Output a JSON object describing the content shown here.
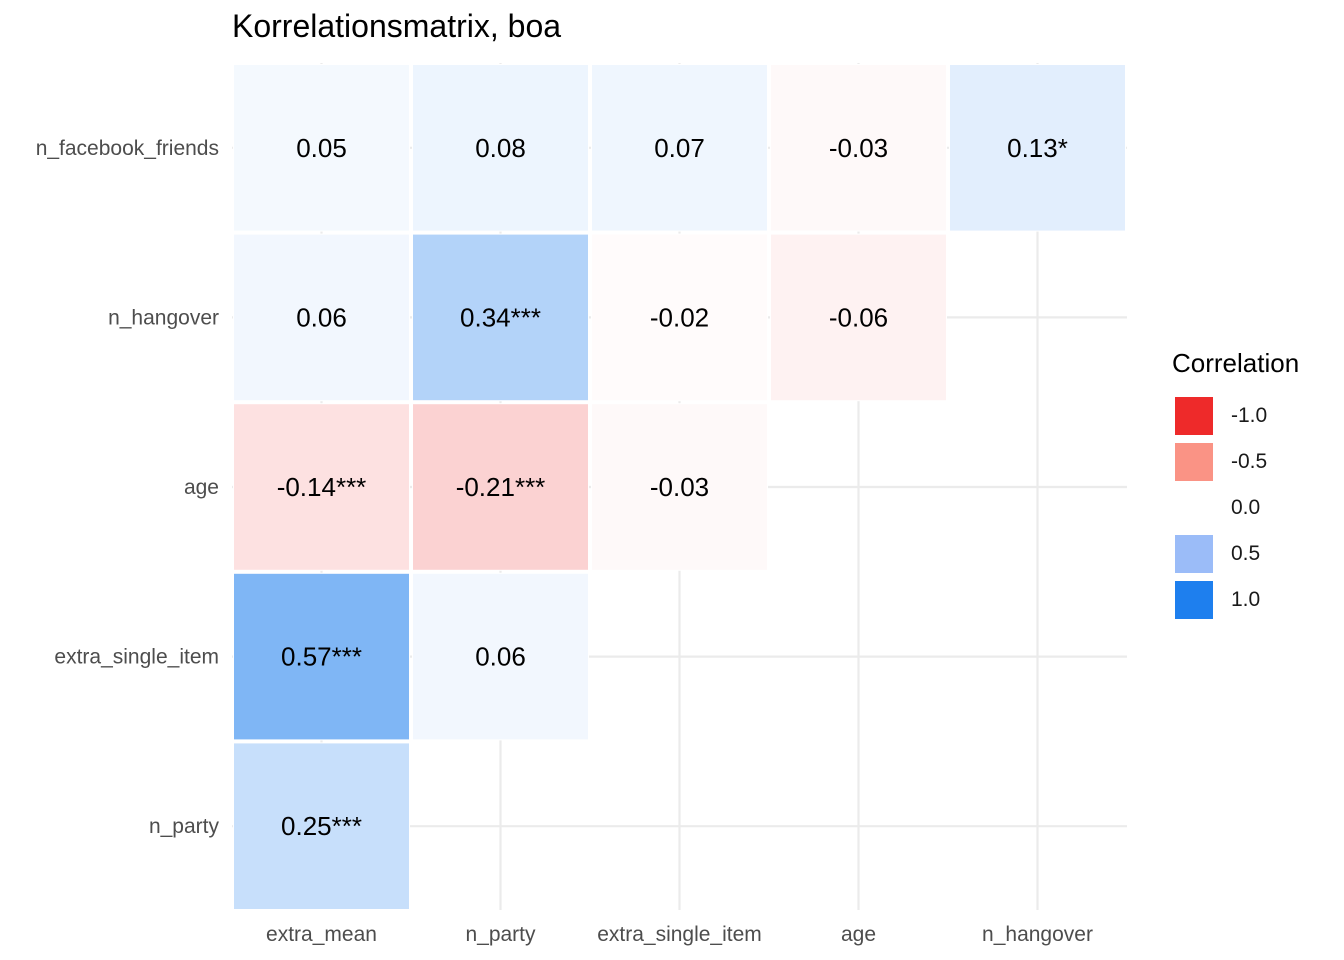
{
  "chart_data": {
    "type": "heatmap",
    "title": "Korrelationsmatrix, boa",
    "xlabel": "",
    "ylabel": "",
    "x_categories": [
      "extra_mean",
      "n_party",
      "extra_single_item",
      "age",
      "n_hangover"
    ],
    "y_categories": [
      "n_facebook_friends",
      "n_hangover",
      "age",
      "extra_single_item",
      "n_party"
    ],
    "cells": [
      {
        "x": "extra_mean",
        "y": "n_facebook_friends",
        "value": 0.05,
        "label": "0.05"
      },
      {
        "x": "n_party",
        "y": "n_facebook_friends",
        "value": 0.08,
        "label": "0.08"
      },
      {
        "x": "extra_single_item",
        "y": "n_facebook_friends",
        "value": 0.07,
        "label": "0.07"
      },
      {
        "x": "age",
        "y": "n_facebook_friends",
        "value": -0.03,
        "label": "-0.03"
      },
      {
        "x": "n_hangover",
        "y": "n_facebook_friends",
        "value": 0.13,
        "label": "0.13*"
      },
      {
        "x": "extra_mean",
        "y": "n_hangover",
        "value": 0.06,
        "label": "0.06"
      },
      {
        "x": "n_party",
        "y": "n_hangover",
        "value": 0.34,
        "label": "0.34***"
      },
      {
        "x": "extra_single_item",
        "y": "n_hangover",
        "value": -0.02,
        "label": "-0.02"
      },
      {
        "x": "age",
        "y": "n_hangover",
        "value": -0.06,
        "label": "-0.06"
      },
      {
        "x": "extra_mean",
        "y": "age",
        "value": -0.14,
        "label": "-0.14***"
      },
      {
        "x": "n_party",
        "y": "age",
        "value": -0.21,
        "label": "-0.21***"
      },
      {
        "x": "extra_single_item",
        "y": "age",
        "value": -0.03,
        "label": "-0.03"
      },
      {
        "x": "extra_mean",
        "y": "extra_single_item",
        "value": 0.57,
        "label": "0.57***"
      },
      {
        "x": "n_party",
        "y": "extra_single_item",
        "value": 0.06,
        "label": "0.06"
      },
      {
        "x": "extra_mean",
        "y": "n_party",
        "value": 0.25,
        "label": "0.25***"
      }
    ],
    "color_scale": {
      "low": "#EE2A2A",
      "mid": "#FFFFFF",
      "high": "#1E7FEE",
      "limits": [
        -1,
        1
      ]
    },
    "legend": {
      "title": "Correlation",
      "position": "right",
      "items": [
        {
          "label": "-1.0",
          "value": -1.0,
          "color": "#EE2A2A"
        },
        {
          "label": "-0.5",
          "value": -0.5,
          "color": "#FA9385"
        },
        {
          "label": "0.0",
          "value": 0.0,
          "color": "#FFFFFF"
        },
        {
          "label": "0.5",
          "value": 0.5,
          "color": "#9BBCF8"
        },
        {
          "label": "1.0",
          "value": 1.0,
          "color": "#1E7FEE"
        }
      ]
    },
    "grid": true
  }
}
